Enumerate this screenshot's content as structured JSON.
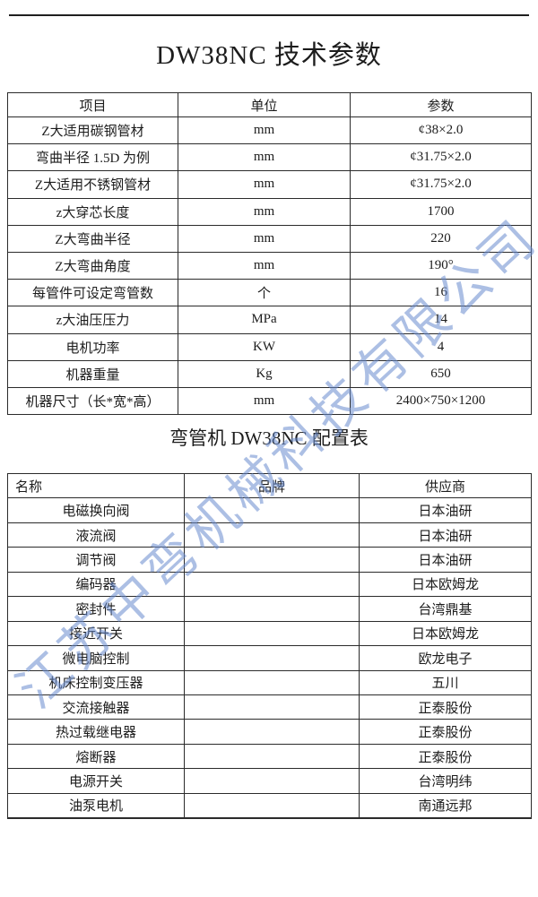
{
  "page": {
    "title1": "DW38NC 技术参数",
    "title2": "弯管机 DW38NC 配置表",
    "watermark": "江苏中弯机械科技有限公司",
    "watermark_color": "#678acd",
    "background_color": "#ffffff",
    "text_color": "#1c1c1c"
  },
  "spec_table": {
    "headers": [
      "项目",
      "单位",
      "参数"
    ],
    "rows": [
      [
        "Z大适用碳钢管材",
        "mm",
        "¢38×2.0"
      ],
      [
        "弯曲半径 1.5D 为例",
        "mm",
        "¢31.75×2.0"
      ],
      [
        "Z大适用不锈钢管材",
        "mm",
        "¢31.75×2.0"
      ],
      [
        "z大穿芯长度",
        "mm",
        "1700"
      ],
      [
        "Z大弯曲半径",
        "mm",
        "220"
      ],
      [
        "Z大弯曲角度",
        "mm",
        "190°"
      ],
      [
        "每管件可设定弯管数",
        "个",
        "16"
      ],
      [
        "z大油压压力",
        "MPa",
        "14"
      ],
      [
        "电机功率",
        "KW",
        "4"
      ],
      [
        "机器重量",
        "Kg",
        "650"
      ],
      [
        "机器尺寸（长*宽*高）",
        "mm",
        "2400×750×1200"
      ]
    ]
  },
  "config_table": {
    "headers": [
      "名称",
      "品牌",
      "供应商"
    ],
    "rows": [
      [
        "电磁换向阀",
        "",
        "日本油研"
      ],
      [
        "液流阀",
        "",
        "日本油研"
      ],
      [
        "调节阀",
        "",
        "日本油研"
      ],
      [
        "编码器",
        "",
        "日本欧姆龙"
      ],
      [
        "密封件",
        "",
        "台湾鼎基"
      ],
      [
        "接近开关",
        "",
        "日本欧姆龙"
      ],
      [
        "微电脑控制",
        "",
        "欧龙电子"
      ],
      [
        "机床控制变压器",
        "",
        "五川"
      ],
      [
        "交流接触器",
        "",
        "正泰股份"
      ],
      [
        "热过载继电器",
        "",
        "正泰股份"
      ],
      [
        "熔断器",
        "",
        "正泰股份"
      ],
      [
        "电源开关",
        "",
        "台湾明纬"
      ],
      [
        "油泵电机",
        "",
        "南通远邦"
      ]
    ]
  }
}
